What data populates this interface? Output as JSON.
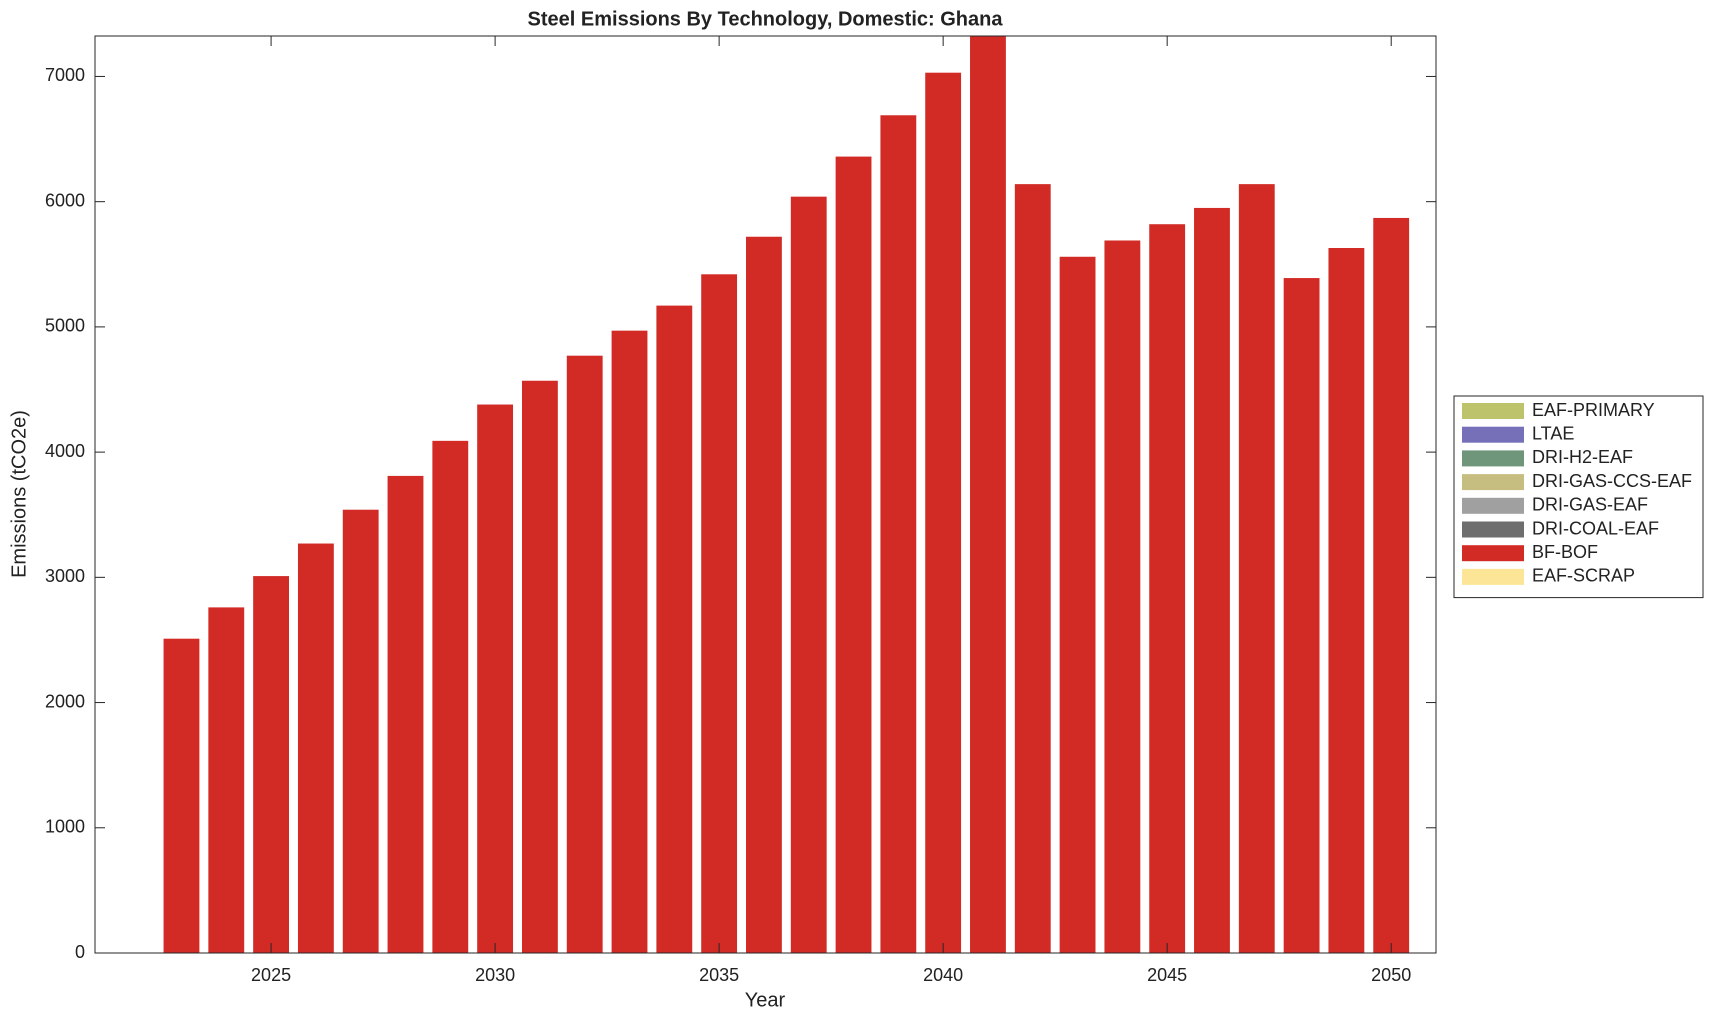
{
  "chart_data": {
    "type": "stacked_bar",
    "title": "Steel Emissions By Technology, Domestic: Ghana",
    "x_label": "Year",
    "y_label": "Emissions (tCO2e)",
    "x": [
      2023,
      2024,
      2025,
      2026,
      2027,
      2028,
      2029,
      2030,
      2031,
      2032,
      2033,
      2034,
      2035,
      2036,
      2037,
      2038,
      2039,
      2040,
      2041,
      2042,
      2043,
      2044,
      2045,
      2046,
      2047,
      2048,
      2049,
      2050
    ],
    "series": [
      {
        "name": "EAF-PRIMARY",
        "color": "#bcc36a",
        "values": [
          0,
          0,
          0,
          0,
          0,
          0,
          0,
          0,
          0,
          0,
          0,
          0,
          0,
          0,
          0,
          0,
          0,
          0,
          0,
          0,
          0,
          0,
          0,
          0,
          0,
          0,
          0,
          0
        ]
      },
      {
        "name": "LTAE",
        "color": "#7570b8",
        "values": [
          0,
          0,
          0,
          0,
          0,
          0,
          0,
          0,
          0,
          0,
          0,
          0,
          0,
          0,
          0,
          0,
          0,
          0,
          0,
          0,
          0,
          0,
          0,
          0,
          0,
          0,
          0,
          0
        ]
      },
      {
        "name": "DRI-H2-EAF",
        "color": "#6f967a",
        "values": [
          0,
          0,
          0,
          0,
          0,
          0,
          0,
          0,
          0,
          0,
          0,
          0,
          0,
          0,
          0,
          0,
          0,
          0,
          0,
          0,
          0,
          0,
          0,
          0,
          0,
          0,
          0,
          0
        ]
      },
      {
        "name": "DRI-GAS-CCS-EAF",
        "color": "#c6bd80",
        "values": [
          0,
          0,
          0,
          0,
          0,
          0,
          0,
          0,
          0,
          0,
          0,
          0,
          0,
          0,
          0,
          0,
          0,
          0,
          0,
          0,
          0,
          0,
          0,
          0,
          0,
          0,
          0,
          0
        ]
      },
      {
        "name": "DRI-GAS-EAF",
        "color": "#a0a0a0",
        "values": [
          0,
          0,
          0,
          0,
          0,
          0,
          0,
          0,
          0,
          0,
          0,
          0,
          0,
          0,
          0,
          0,
          0,
          0,
          0,
          0,
          0,
          0,
          0,
          0,
          0,
          0,
          0,
          0
        ]
      },
      {
        "name": "DRI-COAL-EAF",
        "color": "#6e6e6e",
        "values": [
          0,
          0,
          0,
          0,
          0,
          0,
          0,
          0,
          0,
          0,
          0,
          0,
          0,
          0,
          0,
          0,
          0,
          0,
          0,
          0,
          0,
          0,
          0,
          0,
          0,
          0,
          0,
          0
        ]
      },
      {
        "name": "BF-BOF",
        "color": "#d22b26",
        "values": [
          2510,
          2760,
          3010,
          3270,
          3540,
          3810,
          4090,
          4380,
          4570,
          4770,
          4970,
          5170,
          5420,
          5720,
          6040,
          6360,
          6690,
          7030,
          7320,
          6140,
          5560,
          5690,
          5820,
          5950,
          6140,
          5390,
          5630,
          5870
        ]
      },
      {
        "name": "EAF-SCRAP",
        "color": "#fde598",
        "values": [
          0,
          0,
          0,
          0,
          0,
          0,
          0,
          0,
          0,
          0,
          0,
          0,
          0,
          0,
          0,
          0,
          0,
          0,
          0,
          0,
          0,
          0,
          0,
          0,
          0,
          0,
          0,
          0
        ]
      }
    ],
    "xlim": [
      2021.07,
      2051
    ],
    "xticks": [
      2025,
      2030,
      2035,
      2040,
      2045,
      2050
    ],
    "ylim": [
      0,
      7323
    ],
    "yticks": [
      0,
      1000,
      2000,
      3000,
      4000,
      5000,
      6000,
      7000
    ],
    "legend": "right"
  }
}
